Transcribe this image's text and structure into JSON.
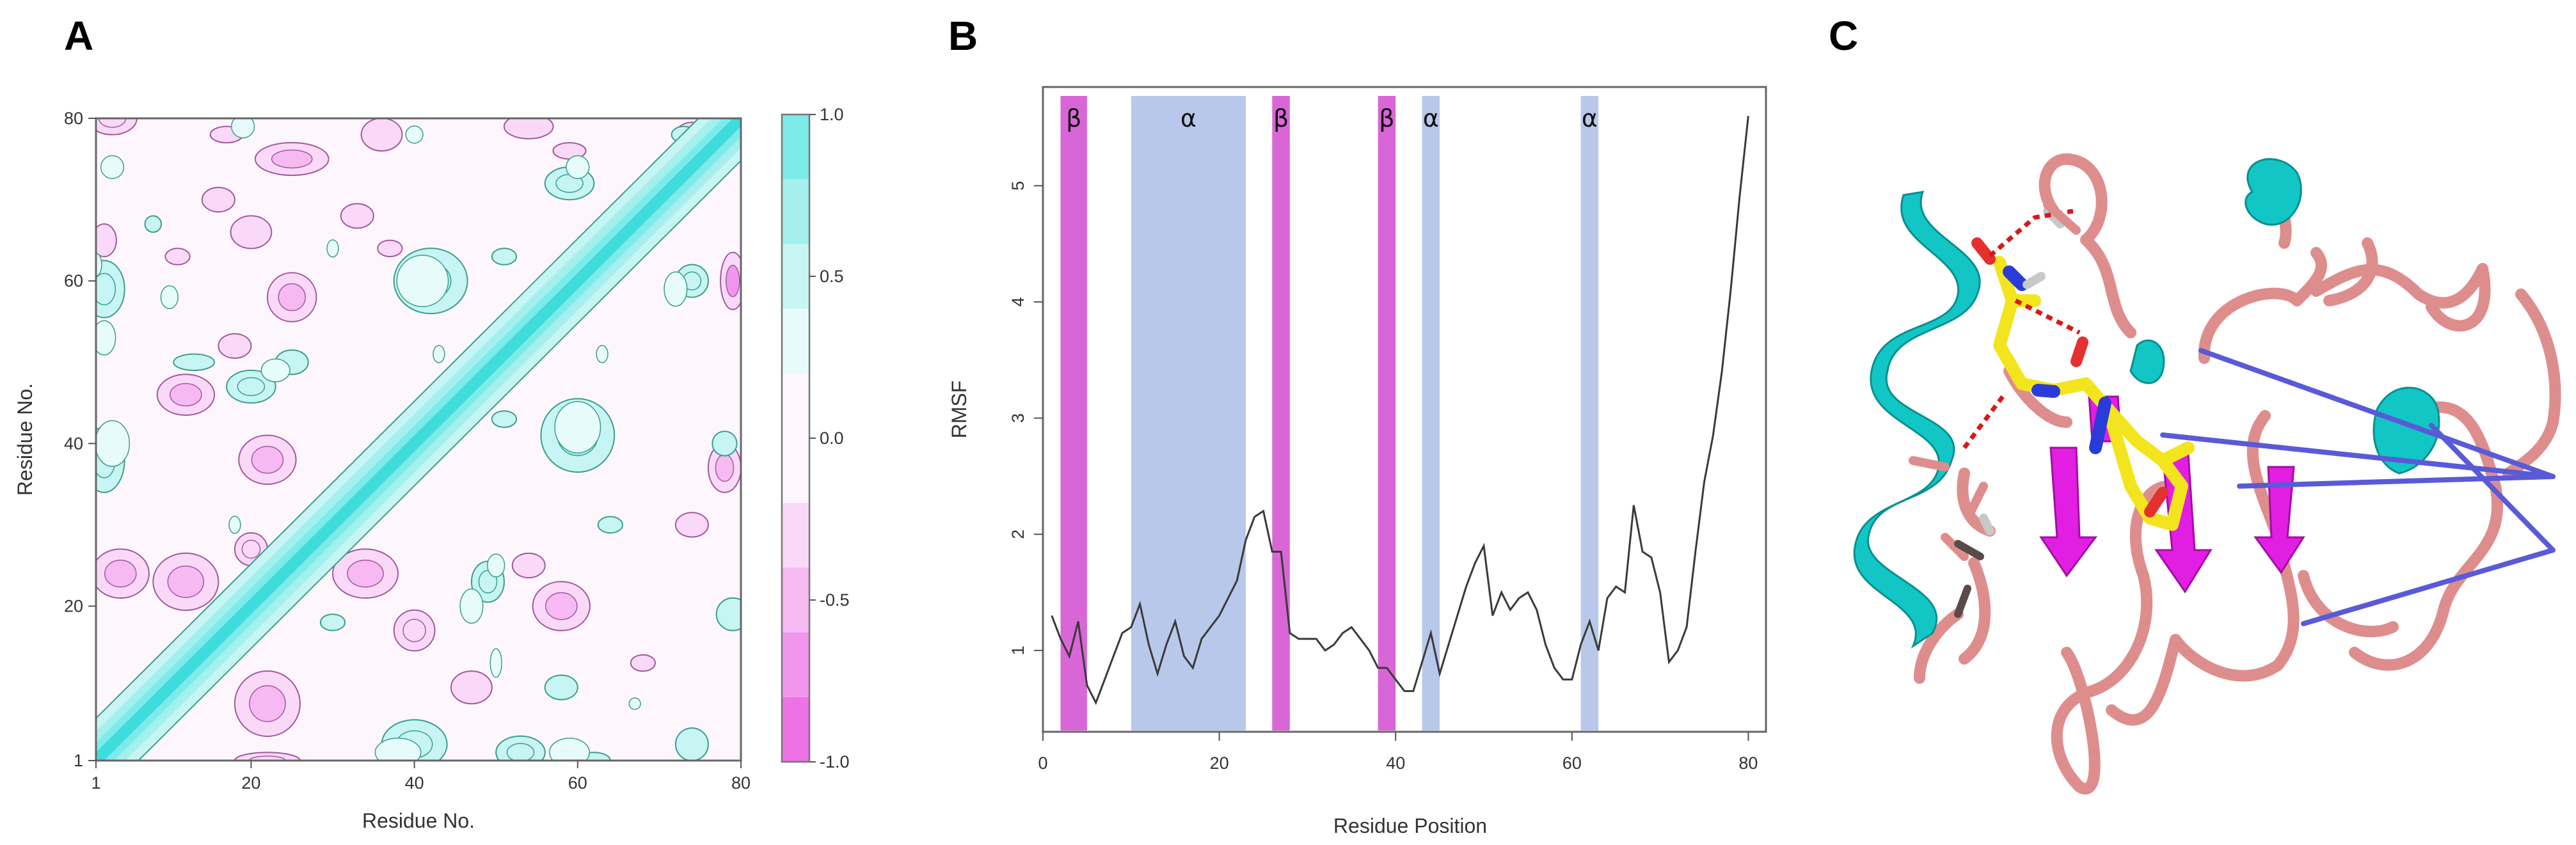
{
  "panels": {
    "a": "A",
    "b": "B",
    "c": "C"
  },
  "colors": {
    "strand": "#d966d6",
    "helix_band": "#b8c8ea",
    "cyan_helix": "#12c6c6",
    "magenta_sheet": "#e31ee3",
    "loop": "#de8d8d",
    "ligand": "#f2e51d",
    "contact_line": "#5a5ad8",
    "hbond": "#d61a1a",
    "corr_pos": "#6fe8e6",
    "corr_neg": "#f09cec"
  },
  "chart_data": [
    {
      "type": "heatmap",
      "panel": "A",
      "xlabel": "Residue No.",
      "ylabel": "Residue No.",
      "xlim": [
        1,
        80
      ],
      "ylim": [
        1,
        80
      ],
      "x_ticks": [
        "1",
        "20",
        "40",
        "60",
        "80"
      ],
      "y_ticks": [
        "1",
        "20",
        "40",
        "60",
        "80"
      ],
      "colorbar": {
        "range": [
          -1.0,
          1.0
        ],
        "tick_labels": [
          "1.0",
          "0.5",
          "0.0",
          "-0.5",
          "-1.0"
        ],
        "tick_values": [
          1.0,
          0.5,
          0.0,
          -0.5,
          -1.0
        ],
        "bands": [
          {
            "from": 0.8,
            "to": 1.0,
            "color": "#7cebe9"
          },
          {
            "from": 0.6,
            "to": 0.8,
            "color": "#a3f0ee"
          },
          {
            "from": 0.4,
            "to": 0.6,
            "color": "#c7f5f3"
          },
          {
            "from": 0.2,
            "to": 0.4,
            "color": "#e6fbfa"
          },
          {
            "from": -0.2,
            "to": 0.2,
            "color": "#fdf6fd"
          },
          {
            "from": -0.4,
            "to": -0.2,
            "color": "#fad9f8"
          },
          {
            "from": -0.6,
            "to": -0.4,
            "color": "#f6b9f2"
          },
          {
            "from": -0.8,
            "to": -0.6,
            "color": "#f196ec"
          },
          {
            "from": -1.0,
            "to": -0.8,
            "color": "#ec72e6"
          }
        ]
      },
      "diagonal_value": 1.0,
      "positive_regions": [
        {
          "x": 2,
          "y": 59,
          "rx": 2.5,
          "ry": 3.5,
          "value": 0.5
        },
        {
          "x": 2,
          "y": 38,
          "rx": 2.5,
          "ry": 4,
          "value": 0.5
        },
        {
          "x": 13,
          "y": 50,
          "rx": 2.5,
          "ry": 1,
          "value": 0.3
        },
        {
          "x": 20,
          "y": 47,
          "rx": 3,
          "ry": 2,
          "value": 0.4
        },
        {
          "x": 25,
          "y": 50,
          "rx": 2,
          "ry": 1.5,
          "value": 0.3
        },
        {
          "x": 42,
          "y": 60,
          "rx": 4.5,
          "ry": 4,
          "value": 0.6
        },
        {
          "x": 51,
          "y": 63,
          "rx": 1.5,
          "ry": 1,
          "value": 0.3
        },
        {
          "x": 60,
          "y": 41,
          "rx": 4.5,
          "ry": 4.5,
          "value": 0.6
        },
        {
          "x": 51,
          "y": 43,
          "rx": 1.5,
          "ry": 1,
          "value": 0.3
        },
        {
          "x": 40,
          "y": 3,
          "rx": 4,
          "ry": 3,
          "value": 0.5
        },
        {
          "x": 49,
          "y": 23,
          "rx": 2,
          "ry": 2.5,
          "value": 0.4
        },
        {
          "x": 53,
          "y": 2,
          "rx": 3,
          "ry": 2,
          "value": 0.4
        },
        {
          "x": 58,
          "y": 10,
          "rx": 2,
          "ry": 1.5,
          "value": 0.3
        },
        {
          "x": 62,
          "y": 1,
          "rx": 2,
          "ry": 1,
          "value": 0.3
        },
        {
          "x": 74,
          "y": 3,
          "rx": 2,
          "ry": 2,
          "value": 0.3
        },
        {
          "x": 79,
          "y": 19,
          "rx": 2,
          "ry": 2,
          "value": 0.3
        },
        {
          "x": 78,
          "y": 40,
          "rx": 1.5,
          "ry": 1.5,
          "value": 0.3
        },
        {
          "x": 74,
          "y": 60,
          "rx": 2,
          "ry": 2,
          "value": 0.4
        },
        {
          "x": 59,
          "y": 72,
          "rx": 3,
          "ry": 2,
          "value": 0.4
        },
        {
          "x": 73,
          "y": 78,
          "rx": 1.5,
          "ry": 1,
          "value": 0.3
        },
        {
          "x": 8,
          "y": 67,
          "rx": 1,
          "ry": 1,
          "value": 0.3
        },
        {
          "x": 30,
          "y": 18,
          "rx": 1.5,
          "ry": 1,
          "value": 0.3
        },
        {
          "x": 64,
          "y": 30,
          "rx": 1.5,
          "ry": 1,
          "value": 0.3
        }
      ],
      "negative_regions": [
        {
          "x": 3,
          "y": 80,
          "rx": 3,
          "ry": 2,
          "value": -0.4
        },
        {
          "x": 17,
          "y": 78,
          "rx": 2,
          "ry": 1,
          "value": -0.3
        },
        {
          "x": 25,
          "y": 75,
          "rx": 4.5,
          "ry": 2,
          "value": -0.5
        },
        {
          "x": 36,
          "y": 78,
          "rx": 2.5,
          "ry": 2,
          "value": -0.3
        },
        {
          "x": 54,
          "y": 79,
          "rx": 3,
          "ry": 1.5,
          "value": -0.3
        },
        {
          "x": 59,
          "y": 76,
          "rx": 2,
          "ry": 1,
          "value": -0.3
        },
        {
          "x": 74,
          "y": 78,
          "rx": 2,
          "ry": 1.5,
          "value": -0.3
        },
        {
          "x": 2,
          "y": 65,
          "rx": 1.5,
          "ry": 2,
          "value": -0.3
        },
        {
          "x": 11,
          "y": 63,
          "rx": 1.5,
          "ry": 1,
          "value": -0.3
        },
        {
          "x": 16,
          "y": 70,
          "rx": 2,
          "ry": 1.5,
          "value": -0.3
        },
        {
          "x": 20,
          "y": 66,
          "rx": 2.5,
          "ry": 2,
          "value": -0.3
        },
        {
          "x": 33,
          "y": 68,
          "rx": 2,
          "ry": 1.5,
          "value": -0.3
        },
        {
          "x": 25,
          "y": 58,
          "rx": 3,
          "ry": 3,
          "value": -0.5
        },
        {
          "x": 18,
          "y": 52,
          "rx": 2,
          "ry": 1.5,
          "value": -0.3
        },
        {
          "x": 12,
          "y": 46,
          "rx": 3.5,
          "ry": 2.5,
          "value": -0.5
        },
        {
          "x": 22,
          "y": 38,
          "rx": 3.5,
          "ry": 3,
          "value": -0.5
        },
        {
          "x": 20,
          "y": 27,
          "rx": 2,
          "ry": 2,
          "value": -0.4
        },
        {
          "x": 4,
          "y": 24,
          "rx": 3.5,
          "ry": 3,
          "value": -0.5
        },
        {
          "x": 12,
          "y": 23,
          "rx": 4,
          "ry": 3.5,
          "value": -0.6
        },
        {
          "x": 22,
          "y": 8,
          "rx": 4,
          "ry": 4,
          "value": -0.6
        },
        {
          "x": 22,
          "y": 1,
          "rx": 4,
          "ry": 1,
          "value": -0.4
        },
        {
          "x": 34,
          "y": 24,
          "rx": 4,
          "ry": 3,
          "value": -0.5
        },
        {
          "x": 40,
          "y": 17,
          "rx": 2.5,
          "ry": 2.5,
          "value": -0.4
        },
        {
          "x": 47,
          "y": 10,
          "rx": 2.5,
          "ry": 2,
          "value": -0.3
        },
        {
          "x": 58,
          "y": 20,
          "rx": 3.5,
          "ry": 3,
          "value": -0.5
        },
        {
          "x": 54,
          "y": 25,
          "rx": 2,
          "ry": 1.5,
          "value": -0.3
        },
        {
          "x": 74,
          "y": 30,
          "rx": 2,
          "ry": 1.5,
          "value": -0.3
        },
        {
          "x": 78,
          "y": 37,
          "rx": 2,
          "ry": 3,
          "value": -0.5
        },
        {
          "x": 79,
          "y": 60,
          "rx": 1.5,
          "ry": 3.5,
          "value": -0.7
        },
        {
          "x": 72,
          "y": 70,
          "rx": 1.5,
          "ry": 1,
          "value": -0.3
        },
        {
          "x": 68,
          "y": 13,
          "rx": 1.5,
          "ry": 1,
          "value": -0.3
        },
        {
          "x": 37,
          "y": 64,
          "rx": 1.5,
          "ry": 1,
          "value": -0.3
        },
        {
          "x": 45,
          "y": 45,
          "rx": 1,
          "ry": 1,
          "value": -0.3
        }
      ]
    },
    {
      "type": "line",
      "panel": "B",
      "xlabel": "Residue Position",
      "ylabel": "RMSF",
      "xlim": [
        0,
        82
      ],
      "ylim": [
        0.3,
        5.85
      ],
      "x_ticks": [
        0,
        20,
        40,
        60,
        80
      ],
      "y_ticks": [
        1,
        2,
        3,
        4,
        5
      ],
      "x": [
        1,
        2,
        3,
        4,
        5,
        6,
        7,
        8,
        9,
        10,
        11,
        12,
        13,
        14,
        15,
        16,
        17,
        18,
        19,
        20,
        21,
        22,
        23,
        24,
        25,
        26,
        27,
        28,
        29,
        30,
        31,
        32,
        33,
        34,
        35,
        36,
        37,
        38,
        39,
        40,
        41,
        42,
        43,
        44,
        45,
        46,
        47,
        48,
        49,
        50,
        51,
        52,
        53,
        54,
        55,
        56,
        57,
        58,
        59,
        60,
        61,
        62,
        63,
        64,
        65,
        66,
        67,
        68,
        69,
        70,
        71,
        72,
        73,
        74,
        75,
        76,
        77,
        78,
        79,
        80
      ],
      "y": [
        1.3,
        1.1,
        0.95,
        1.25,
        0.7,
        0.55,
        0.75,
        0.95,
        1.15,
        1.2,
        1.4,
        1.05,
        0.8,
        1.05,
        1.25,
        0.95,
        0.85,
        1.1,
        1.2,
        1.3,
        1.45,
        1.6,
        1.95,
        2.15,
        2.2,
        1.85,
        1.85,
        1.15,
        1.1,
        1.1,
        1.1,
        1.0,
        1.05,
        1.15,
        1.2,
        1.1,
        1.0,
        0.85,
        0.85,
        0.75,
        0.65,
        0.65,
        0.9,
        1.15,
        0.8,
        1.05,
        1.3,
        1.55,
        1.75,
        1.9,
        1.3,
        1.5,
        1.35,
        1.45,
        1.5,
        1.35,
        1.05,
        0.85,
        0.75,
        0.75,
        1.05,
        1.25,
        1.0,
        1.45,
        1.55,
        1.5,
        2.25,
        1.85,
        1.8,
        1.5,
        0.9,
        1.0,
        1.2,
        1.85,
        2.45,
        2.85,
        3.4,
        4.1,
        4.9,
        5.6
      ],
      "bands": [
        {
          "label": "β",
          "kind": "strand",
          "from": 2,
          "to": 5
        },
        {
          "label": "α",
          "kind": "helix",
          "from": 10,
          "to": 23
        },
        {
          "label": "β",
          "kind": "strand",
          "from": 26,
          "to": 28
        },
        {
          "label": "β",
          "kind": "strand",
          "from": 38,
          "to": 40
        },
        {
          "label": "α",
          "kind": "helix",
          "from": 43,
          "to": 45
        },
        {
          "label": "α",
          "kind": "helix",
          "from": 61,
          "to": 63
        }
      ]
    }
  ]
}
